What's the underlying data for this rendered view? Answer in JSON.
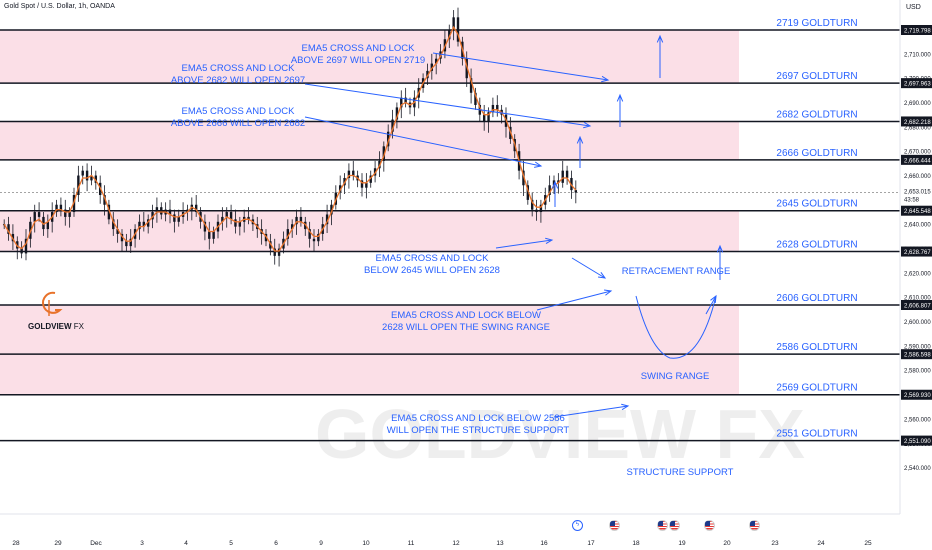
{
  "header": {
    "title": "Gold Spot / U.S. Dollar, 1h, OANDA",
    "currency": "USD"
  },
  "brand": {
    "name_bold": "GOLDVIEW",
    "name_light": "FX",
    "watermark": "GOLDVIEW FX",
    "accent": "#e8722a"
  },
  "colors": {
    "zone_fill": "#fbdfe7",
    "line": "#131722",
    "annotation": "#2962ff",
    "candle": "#131722",
    "ema": "#e8722a",
    "label_highlight": "#131722"
  },
  "chart_data": {
    "type": "candlestick",
    "y_range": [
      2537,
      2732
    ],
    "x_tick_labels": [
      "28",
      "29",
      "Dec",
      "3",
      "4",
      "5",
      "6",
      "9",
      "10",
      "11",
      "12",
      "13",
      "16",
      "17",
      "18",
      "19",
      "20",
      "23",
      "24",
      "25"
    ],
    "y_tick_labels": [
      "2,540.000",
      "2,550.000",
      "2,560.000",
      "2,570.000",
      "2,580.000",
      "2,590.000",
      "2,600.000",
      "2,610.000",
      "2,620.000",
      "2,630.000",
      "2,640.000",
      "2,650.000",
      "2,660.000",
      "2,670.000",
      "2,680.000",
      "2,690.000",
      "2,700.000",
      "2,710.000"
    ],
    "current_price": "2,653.015",
    "countdown": "43:58",
    "levels": [
      {
        "price": 2719.798,
        "label": "2,719.798",
        "name": "2719 GOLDTURN"
      },
      {
        "price": 2697.963,
        "label": "2,697.963",
        "name": "2697 GOLDTURN"
      },
      {
        "price": 2682.218,
        "label": "2,682.218",
        "name": "2682 GOLDTURN"
      },
      {
        "price": 2666.444,
        "label": "2,666.444",
        "name": "2666 GOLDTURN"
      },
      {
        "price": 2645.548,
        "label": "2,645.548",
        "name": "2645 GOLDTURN"
      },
      {
        "price": 2628.767,
        "label": "2,628.767",
        "name": "2628 GOLDTURN"
      },
      {
        "price": 2606.807,
        "label": "2,606.807",
        "name": "2606 GOLDTURN"
      },
      {
        "price": 2586.598,
        "label": "2,586.598",
        "name": "2586 GOLDTURN"
      },
      {
        "price": 2569.93,
        "label": "2,569.930",
        "name": "2569 GOLDTURN"
      },
      {
        "price": 2551.09,
        "label": "2,551.090",
        "name": "2551 GOLDTURN"
      }
    ],
    "zones": [
      [
        2697.963,
        2719.798
      ],
      [
        2666.444,
        2682.218
      ],
      [
        2628.767,
        2645.548
      ],
      [
        2569.93,
        2606.807
      ]
    ],
    "annotations": [
      {
        "text": [
          "EMA5 CROSS AND LOCK",
          "ABOVE 2697 WILL OPEN 2719"
        ]
      },
      {
        "text": [
          "EMA5 CROSS AND LOCK",
          "ABOVE 2682 WILL OPEN 2697"
        ]
      },
      {
        "text": [
          "EMA5 CROSS AND LOCK",
          "ABOVE 2666 WILL OPEN 2682"
        ]
      },
      {
        "text": [
          "EMA5 CROSS AND LOCK",
          "BELOW 2645 WILL OPEN 2628"
        ]
      },
      {
        "text": [
          "EMA5 CROSS AND LOCK BELOW",
          "2628 WILL OPEN THE SWING RANGE"
        ]
      },
      {
        "text": [
          "EMA5 CROSS AND LOCK BELOW 2586",
          "WILL OPEN THE STRUCTURE SUPPORT"
        ]
      },
      {
        "text": [
          "RETRACEMENT RANGE"
        ]
      },
      {
        "text": [
          "SWING RANGE"
        ]
      },
      {
        "text": [
          "STRUCTURE SUPPORT"
        ]
      }
    ],
    "series_close": [
      2640,
      2636,
      2633,
      2630,
      2628,
      2634,
      2641,
      2645,
      2643,
      2638,
      2641,
      2645,
      2648,
      2646,
      2643,
      2645,
      2652,
      2660,
      2662,
      2658,
      2660,
      2657,
      2652,
      2648,
      2642,
      2638,
      2636,
      2633,
      2631,
      2634,
      2638,
      2641,
      2639,
      2642,
      2645,
      2647,
      2644,
      2646,
      2644,
      2641,
      2643,
      2645,
      2646,
      2648,
      2645,
      2641,
      2637,
      2634,
      2637,
      2641,
      2643,
      2645,
      2642,
      2639,
      2641,
      2643,
      2642,
      2640,
      2638,
      2636,
      2633,
      2630,
      2627,
      2630,
      2634,
      2638,
      2640,
      2643,
      2641,
      2638,
      2634,
      2633,
      2636,
      2640,
      2644,
      2648,
      2653,
      2656,
      2659,
      2662,
      2660,
      2658,
      2655,
      2657,
      2660,
      2663,
      2666,
      2672,
      2678,
      2683,
      2688,
      2692,
      2690,
      2688,
      2692,
      2696,
      2700,
      2703,
      2706,
      2708,
      2711,
      2716,
      2720,
      2725,
      2715,
      2708,
      2700,
      2694,
      2689,
      2685,
      2682,
      2686,
      2689,
      2687,
      2685,
      2680,
      2675,
      2670,
      2662,
      2656,
      2650,
      2646,
      2645,
      2648,
      2652,
      2656,
      2658,
      2657,
      2662,
      2659,
      2654,
      2653
    ],
    "ema_close": [
      2640,
      2637,
      2634,
      2631,
      2630,
      2632,
      2637,
      2641,
      2642,
      2640,
      2641,
      2643,
      2646,
      2646,
      2645,
      2645,
      2649,
      2655,
      2659,
      2659,
      2660,
      2658,
      2655,
      2651,
      2646,
      2641,
      2638,
      2635,
      2633,
      2633,
      2636,
      2639,
      2639,
      2641,
      2643,
      2645,
      2645,
      2645,
      2644,
      2643,
      2643,
      2644,
      2645,
      2647,
      2646,
      2643,
      2640,
      2637,
      2637,
      2639,
      2641,
      2643,
      2642,
      2641,
      2641,
      2642,
      2642,
      2641,
      2639,
      2637,
      2635,
      2632,
      2629,
      2629,
      2632,
      2635,
      2638,
      2641,
      2641,
      2640,
      2637,
      2635,
      2635,
      2638,
      2641,
      2645,
      2650,
      2654,
      2657,
      2660,
      2660,
      2659,
      2657,
      2657,
      2659,
      2661,
      2664,
      2668,
      2674,
      2679,
      2684,
      2689,
      2690,
      2689,
      2690,
      2694,
      2698,
      2701,
      2704,
      2706,
      2709,
      2713,
      2717,
      2721,
      2718,
      2712,
      2705,
      2699,
      2693,
      2688,
      2685,
      2685,
      2687,
      2687,
      2686,
      2683,
      2678,
      2673,
      2666,
      2660,
      2654,
      2649,
      2647,
      2647,
      2650,
      2653,
      2656,
      2657,
      2659,
      2659,
      2656,
      2654
    ]
  }
}
